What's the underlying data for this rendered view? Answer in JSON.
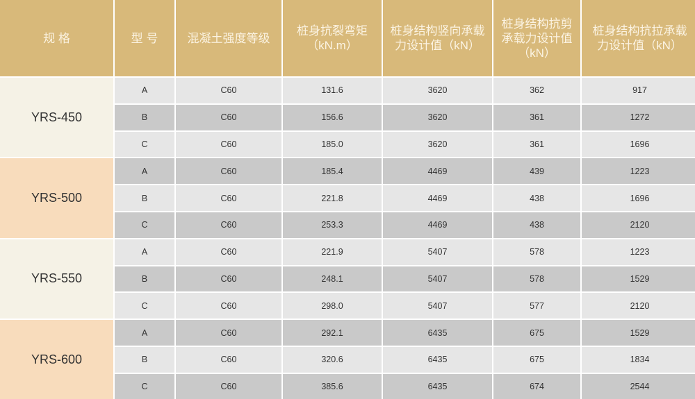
{
  "colors": {
    "header_bg": "#d8b97a",
    "header_text": "#fbf3e2",
    "spec_bg_a": "#f5f2e6",
    "spec_bg_b": "#f8dcbc",
    "row_light": "#e6e6e6",
    "row_dark": "#c9c9c9"
  },
  "headers": [
    "规  格",
    "型  号",
    "混凝土强度等级",
    "桩身抗裂弯矩\n（kN.m）",
    "桩身结构竖向承载\n力设计值（kN）",
    "桩身结构抗剪\n承载力设计值\n（kN）",
    "桩身结构抗拉承载\n力设计值（kN）"
  ],
  "groups": [
    {
      "spec": "YRS-450",
      "rows": [
        [
          "A",
          "C60",
          "131.6",
          "3620",
          "362",
          "917"
        ],
        [
          "B",
          "C60",
          "156.6",
          "3620",
          "361",
          "1272"
        ],
        [
          "C",
          "C60",
          "185.0",
          "3620",
          "361",
          "1696"
        ]
      ]
    },
    {
      "spec": "YRS-500",
      "rows": [
        [
          "A",
          "C60",
          "185.4",
          "4469",
          "439",
          "1223"
        ],
        [
          "B",
          "C60",
          "221.8",
          "4469",
          "438",
          "1696"
        ],
        [
          "C",
          "C60",
          "253.3",
          "4469",
          "438",
          "2120"
        ]
      ]
    },
    {
      "spec": "YRS-550",
      "rows": [
        [
          "A",
          "C60",
          "221.9",
          "5407",
          "578",
          "1223"
        ],
        [
          "B",
          "C60",
          "248.1",
          "5407",
          "578",
          "1529"
        ],
        [
          "C",
          "C60",
          "298.0",
          "5407",
          "577",
          "2120"
        ]
      ]
    },
    {
      "spec": "YRS-600",
      "rows": [
        [
          "A",
          "C60",
          "292.1",
          "6435",
          "675",
          "1529"
        ],
        [
          "B",
          "C60",
          "320.6",
          "6435",
          "675",
          "1834"
        ],
        [
          "C",
          "C60",
          "385.6",
          "6435",
          "674",
          "2544"
        ]
      ]
    }
  ]
}
